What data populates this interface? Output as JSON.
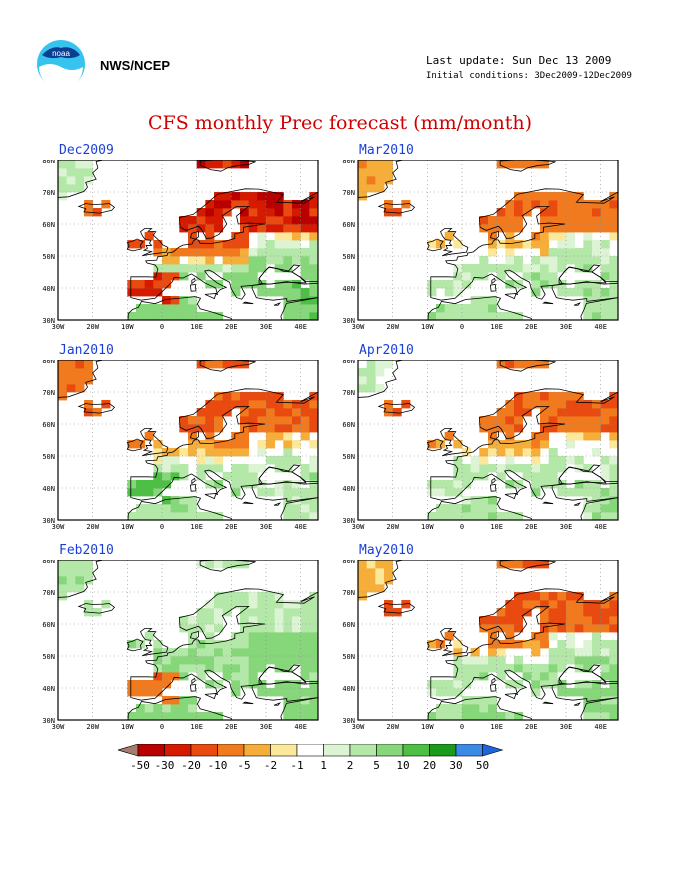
{
  "header": {
    "agency": "NWS/NCEP",
    "last_update": "Last update: Sun Dec 13 2009",
    "initial_conditions": "Initial conditions: 3Dec2009-12Dec2009",
    "logo_icon": "noaa-logo-icon",
    "logo_text": "noaa"
  },
  "title": "CFS monthly Prec forecast (mm/month)",
  "axes": {
    "x_ticks": [
      "30W",
      "20W",
      "10W",
      "0",
      "10E",
      "20E",
      "30E",
      "40E"
    ],
    "y_ticks": [
      "80N",
      "70N",
      "60N",
      "50N",
      "40N",
      "30N"
    ],
    "lon_range": [
      -30,
      45
    ],
    "lat_range": [
      30,
      80
    ]
  },
  "panels": [
    {
      "label": "Dec2009",
      "pattern": {
        "north": -25,
        "south": 6,
        "east": 10,
        "iceland": -10,
        "greenland": 3,
        "iberia": -20
      }
    },
    {
      "label": "Mar2010",
      "pattern": {
        "north": -8,
        "south": 4,
        "east": 4,
        "iceland": -10,
        "greenland": -4,
        "iberia": 2
      }
    },
    {
      "label": "Jan2010",
      "pattern": {
        "north": -12,
        "south": 4,
        "east": 3,
        "iceland": -10,
        "greenland": -8,
        "iberia": 12
      }
    },
    {
      "label": "Apr2010",
      "pattern": {
        "north": -10,
        "south": 4,
        "east": 3,
        "iceland": -10,
        "greenland": 2,
        "iberia": 3
      }
    },
    {
      "label": "Feb2010",
      "pattern": {
        "north": 3,
        "south": 6,
        "east": 8,
        "iceland": 4,
        "greenland": 4,
        "iberia": -8
      }
    },
    {
      "label": "May2010",
      "pattern": {
        "north": -10,
        "south": 5,
        "east": 6,
        "iceland": -10,
        "greenland": -3,
        "iberia": 3
      }
    }
  ],
  "colorbar": {
    "ticks": [
      "-50",
      "-30",
      "-20",
      "-10",
      "-5",
      "-2",
      "-1",
      "1",
      "2",
      "5",
      "10",
      "20",
      "30",
      "50"
    ],
    "colors": [
      "#a67c6e",
      "#b80000",
      "#d61a00",
      "#e84a10",
      "#f27a1e",
      "#f5ae3a",
      "#fbe89a",
      "#ffffff",
      "#dcf4d4",
      "#b4e8a8",
      "#86d67a",
      "#4cbf44",
      "#1c9a1c",
      "#3a8ae6",
      "#1e64dc"
    ]
  }
}
